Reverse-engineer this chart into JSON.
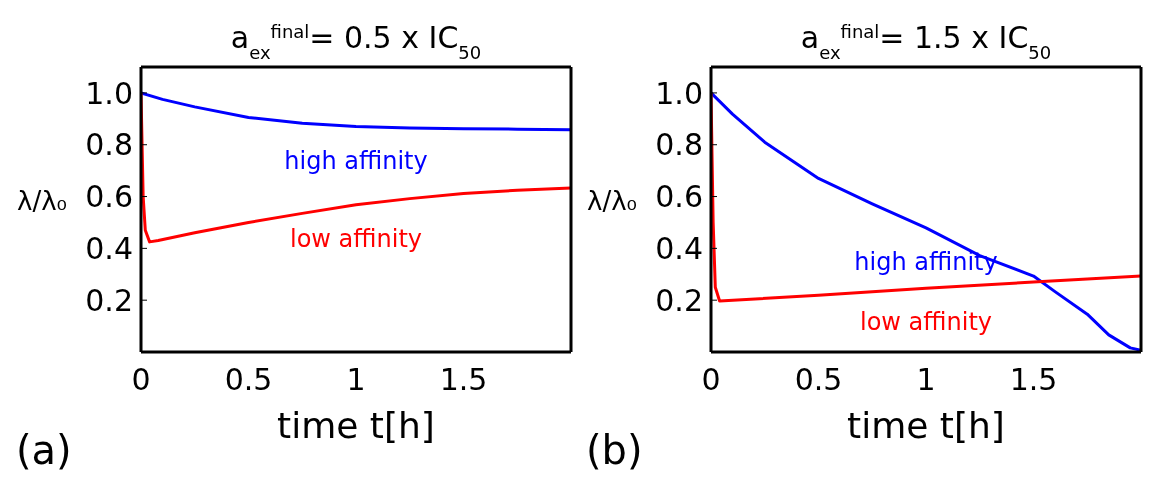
{
  "chart_data": [
    {
      "type": "line",
      "title": "a$_{ex}$$^{final}$= 0.5 x IC$_{50}$",
      "xlabel": "time t[h]",
      "ylabel": "λ/λ₀",
      "annotations": [
        "(a)"
      ],
      "xlim": [
        0,
        2
      ],
      "ylim": [
        0,
        1.1
      ],
      "xticks": [
        0,
        0.5,
        1,
        1.5
      ],
      "yticks": [
        0.2,
        0.4,
        0.6,
        0.8,
        {
          "value": 1,
          "label": "1.0"
        }
      ],
      "legend": false,
      "marker": "none",
      "line_style": "solid",
      "series": [
        {
          "name": "high affinity",
          "color": "#0000ff",
          "x": [
            0,
            0.1,
            0.25,
            0.5,
            0.75,
            1,
            1.25,
            1.5,
            1.75,
            2
          ],
          "values": [
            1.0,
            0.975,
            0.946,
            0.905,
            0.883,
            0.87,
            0.865,
            0.862,
            0.86,
            0.858
          ]
        },
        {
          "name": "low affinity",
          "color": "#ff0000",
          "x": [
            0,
            0.01,
            0.02,
            0.04,
            0.08,
            0.25,
            0.5,
            0.75,
            1,
            1.25,
            1.5,
            1.75,
            2
          ],
          "values": [
            1.0,
            0.6,
            0.47,
            0.425,
            0.43,
            0.46,
            0.5,
            0.535,
            0.568,
            0.592,
            0.612,
            0.624,
            0.633
          ]
        }
      ]
    },
    {
      "type": "line",
      "title": "a$_{ex}$$^{final}$= 1.5 x IC$_{50}$",
      "xlabel": "time t[h]",
      "ylabel": "λ/λ₀",
      "annotations": [
        "(b)"
      ],
      "xlim": [
        0,
        2
      ],
      "ylim": [
        0,
        1.1
      ],
      "xticks": [
        0,
        0.5,
        1,
        1.5
      ],
      "yticks": [
        0.2,
        0.4,
        0.6,
        0.8,
        {
          "value": 1,
          "label": "1.0"
        }
      ],
      "legend": false,
      "marker": "none",
      "line_style": "solid",
      "series": [
        {
          "name": "high affinity",
          "color": "#0000ff",
          "x": [
            0,
            0.1,
            0.25,
            0.5,
            0.75,
            1,
            1.25,
            1.5,
            1.6,
            1.75,
            1.85,
            1.95,
            2
          ],
          "values": [
            1.0,
            0.918,
            0.81,
            0.67,
            0.572,
            0.479,
            0.372,
            0.293,
            0.233,
            0.146,
            0.066,
            0.016,
            0.007
          ]
        },
        {
          "name": "low affinity",
          "color": "#ff0000",
          "x": [
            0,
            0.01,
            0.02,
            0.04,
            0.5,
            1,
            1.5,
            2
          ],
          "values": [
            1.0,
            0.5,
            0.25,
            0.197,
            0.219,
            0.246,
            0.27,
            0.293
          ]
        }
      ]
    }
  ]
}
